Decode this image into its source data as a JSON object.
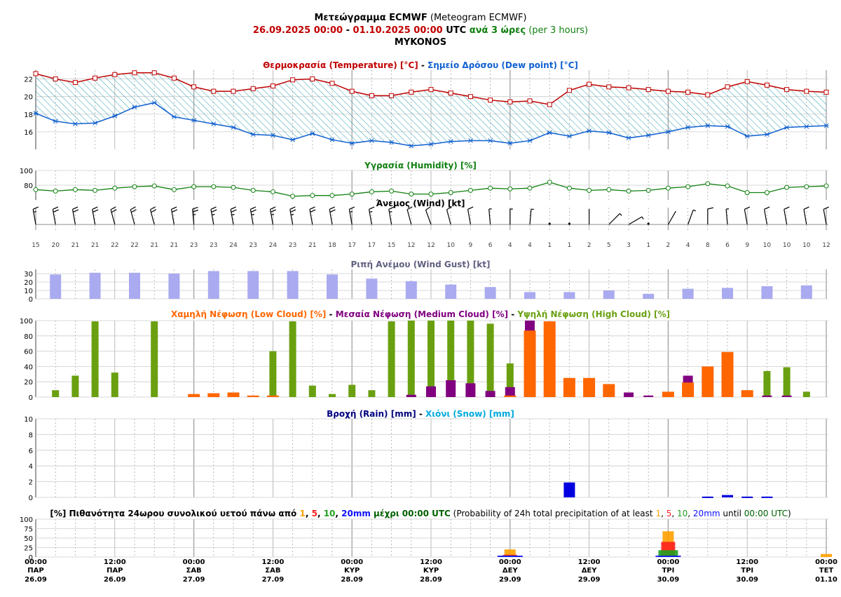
{
  "header": {
    "title_bold": "Μετεώγραμμα ECMWF",
    "title_rest": " (Meteogram ECMWF)",
    "period_start": "26.09.2025 00:00",
    "period_sep": " - ",
    "period_end": "01.10.2025 00:00",
    "utc": " UTC ",
    "step_bold": "ανά 3 ώρες",
    "step_rest": " (per 3 hours)",
    "location": "MYKONOS"
  },
  "colors": {
    "temp": "#c00000",
    "dew": "#1060d0",
    "hum": "#108010",
    "gust": "#aaaaf0",
    "low": "#ff6600",
    "mid": "#800080",
    "high": "#6aa010",
    "rain": "#0000e0",
    "p1": "#ffa000",
    "p5": "#ff2020",
    "p10": "#20a020",
    "p20": "#1010ff"
  },
  "chart_data": [
    {
      "id": "temperature",
      "type": "line",
      "title_parts": [
        {
          "text": "Θερμοκρασία (Temperature) [°C]",
          "color": "#c00000"
        },
        {
          "text": " - ",
          "color": "#000000"
        },
        {
          "text": "Σημείο Δρόσου (Dew point) [°C]",
          "color": "#1060d0"
        }
      ],
      "ylim": [
        14,
        23
      ],
      "yticks": [
        16,
        18,
        20,
        22
      ],
      "series": [
        {
          "name": "Θερμοκρασία (Temperature) [°C]",
          "values": [
            22.6,
            22.0,
            21.6,
            22.1,
            22.5,
            22.7,
            22.7,
            22.1,
            21.1,
            20.6,
            20.6,
            20.9,
            21.2,
            21.9,
            22.0,
            21.5,
            20.6,
            20.1,
            20.1,
            20.5,
            20.8,
            20.4,
            20.0,
            19.6,
            19.4,
            19.5,
            19.1,
            20.7,
            21.4,
            21.1,
            21.0,
            20.8,
            20.6,
            20.5,
            20.2,
            21.1,
            21.7,
            21.3,
            20.8,
            20.6,
            20.5
          ]
        },
        {
          "name": "Σημείο Δρόσου (Dew point) [°C]",
          "values": [
            18.1,
            17.2,
            16.9,
            17.0,
            17.8,
            18.8,
            19.3,
            17.7,
            17.3,
            16.9,
            16.5,
            15.7,
            15.6,
            15.1,
            15.8,
            15.1,
            14.7,
            15.0,
            14.8,
            14.4,
            14.6,
            14.9,
            15.0,
            15.0,
            14.7,
            15.0,
            15.9,
            15.5,
            16.1,
            15.9,
            15.3,
            15.6,
            16.0,
            16.5,
            16.7,
            16.6,
            15.5,
            15.7,
            16.5,
            16.6,
            16.7
          ]
        }
      ]
    },
    {
      "id": "humidity",
      "type": "line",
      "title": "Υγρασία (Humidity) [%]",
      "ylim": [
        60,
        100
      ],
      "yticks": [
        80,
        100
      ],
      "series": [
        {
          "name": "Υγρασία (Humidity) [%]",
          "values": [
            74,
            72,
            74,
            73,
            76,
            78,
            79,
            74,
            78,
            78,
            77,
            73,
            71,
            65,
            66,
            66,
            68,
            71,
            72,
            68,
            68,
            70,
            73,
            76,
            75,
            76,
            84,
            76,
            73,
            74,
            72,
            73,
            76,
            78,
            82,
            79,
            70,
            70,
            77,
            78,
            79
          ]
        }
      ]
    },
    {
      "id": "wind",
      "type": "table",
      "title": "Άνεμος (Wind) [kt]",
      "speeds": [
        15,
        20,
        21,
        21,
        22,
        22,
        21,
        21,
        23,
        23,
        24,
        23,
        24,
        23,
        21,
        18,
        17,
        17,
        15,
        12,
        12,
        10,
        9,
        6,
        4,
        4,
        1,
        1,
        2,
        5,
        3,
        1,
        2,
        4,
        8,
        6,
        9,
        10,
        10,
        10,
        12
      ],
      "directions_deg": [
        350,
        350,
        350,
        350,
        345,
        345,
        345,
        350,
        355,
        350,
        350,
        350,
        350,
        350,
        350,
        350,
        350,
        350,
        350,
        345,
        340,
        345,
        350,
        355,
        0,
        5,
        0,
        0,
        0,
        45,
        60,
        90,
        30,
        20,
        0,
        355,
        350,
        350,
        350,
        350,
        350
      ]
    },
    {
      "id": "gust",
      "type": "bar",
      "title": "Ριπή Ανέμου (Wind Gust) [kt]",
      "ylim": [
        0,
        35
      ],
      "yticks": [
        0,
        10,
        20,
        30
      ],
      "values": [
        null,
        29,
        null,
        31,
        null,
        31,
        null,
        30,
        null,
        33,
        null,
        33,
        null,
        33,
        null,
        29,
        null,
        24,
        null,
        21,
        null,
        17,
        null,
        14,
        null,
        8,
        null,
        8,
        null,
        10,
        null,
        6,
        null,
        12,
        null,
        13,
        null,
        15,
        null,
        16,
        null
      ]
    },
    {
      "id": "clouds",
      "type": "bar",
      "title_parts": [
        {
          "text": "Χαμηλή Νέφωση (Low Cloud) [%]",
          "color": "#ff6600"
        },
        {
          "text": " - ",
          "color": "#000000"
        },
        {
          "text": "Μεσαία Νέφωση (Medium Cloud) [%]",
          "color": "#800080"
        },
        {
          "text": " - ",
          "color": "#000000"
        },
        {
          "text": "Υψηλή Νέφωση (High Cloud) [%]",
          "color": "#6aa010"
        }
      ],
      "ylim": [
        0,
        100
      ],
      "yticks": [
        0,
        20,
        40,
        60,
        80,
        100
      ],
      "series": [
        {
          "name": "Υψηλή Νέφωση (High Cloud) [%]",
          "values": [
            0,
            9,
            28,
            99,
            32,
            0,
            99,
            0,
            0,
            0,
            0,
            0,
            60,
            99,
            15,
            4,
            16,
            9,
            99,
            100,
            100,
            100,
            100,
            96,
            44,
            0,
            0,
            0,
            0,
            0,
            0,
            0,
            0,
            0,
            0,
            0,
            0,
            34,
            39,
            7,
            0
          ]
        },
        {
          "name": "Μεσαία Νέφωση (Medium Cloud) [%]",
          "values": [
            0,
            0,
            0,
            0,
            0,
            0,
            0,
            0,
            0,
            0,
            0,
            0,
            0,
            0,
            0,
            0,
            0,
            0,
            0,
            3,
            14,
            22,
            18,
            8,
            13,
            100,
            0,
            0,
            0,
            0,
            6,
            2,
            0,
            28,
            0,
            0,
            0,
            2,
            2,
            0,
            0
          ]
        },
        {
          "name": "Χαμηλή Νέφωση (Low Cloud) [%]",
          "values": [
            0,
            0,
            0,
            0,
            0,
            0,
            0,
            0,
            4,
            5,
            6,
            2,
            2,
            0,
            0,
            0,
            0,
            0,
            0,
            0,
            0,
            0,
            0,
            0,
            2,
            87,
            99,
            25,
            25,
            17,
            0,
            0,
            7,
            19,
            40,
            59,
            9,
            0,
            0,
            0,
            0
          ]
        }
      ]
    },
    {
      "id": "precip",
      "type": "bar",
      "title_parts": [
        {
          "text": "Βροχή (Rain) [mm]",
          "color": "#000080"
        },
        {
          "text": " - ",
          "color": "#000000"
        },
        {
          "text": "Χιόνι (Snow) [mm]",
          "color": "#00aadd"
        }
      ],
      "ylim": [
        0,
        10
      ],
      "yticks": [
        0,
        2,
        4,
        6,
        8,
        10
      ],
      "series": [
        {
          "name": "Βροχή (Rain) [mm]",
          "values": [
            0,
            0,
            0,
            0,
            0,
            0,
            0,
            0,
            0,
            0,
            0,
            0,
            0,
            0,
            0,
            0,
            0,
            0,
            0,
            0,
            0,
            0,
            0,
            0,
            0,
            0,
            0,
            1.9,
            0,
            0,
            0,
            0,
            0,
            0,
            0.1,
            0.3,
            0.1,
            0.1,
            0,
            0,
            0
          ]
        }
      ]
    },
    {
      "id": "probability",
      "type": "bar",
      "title_parts": [
        {
          "text": "[%] Πιθανότητα 24ωρου συνολικού υετού πάνω από ",
          "color": "#000000",
          "bold": true
        },
        {
          "text": "1",
          "color": "#ffa000",
          "bold": true
        },
        {
          "text": ", ",
          "color": "#000000",
          "bold": true
        },
        {
          "text": "5",
          "color": "#ff2020",
          "bold": true
        },
        {
          "text": ", ",
          "color": "#000000",
          "bold": true
        },
        {
          "text": "10",
          "color": "#20a020",
          "bold": true
        },
        {
          "text": ", ",
          "color": "#000000",
          "bold": true
        },
        {
          "text": "20mm",
          "color": "#1010ff",
          "bold": true
        },
        {
          "text": " μέχρι 00:00 UTC",
          "color": "#006000",
          "bold": true
        },
        {
          "text": " (Probability of 24h total precipitation of at least ",
          "color": "#000000",
          "bold": false
        },
        {
          "text": "1",
          "color": "#ffa000",
          "bold": false
        },
        {
          "text": ", ",
          "color": "#000000",
          "bold": false
        },
        {
          "text": "5",
          "color": "#ff2020",
          "bold": false
        },
        {
          "text": ", ",
          "color": "#000000",
          "bold": false
        },
        {
          "text": "10",
          "color": "#20a020",
          "bold": false
        },
        {
          "text": ", ",
          "color": "#000000",
          "bold": false
        },
        {
          "text": "20mm",
          "color": "#1010ff",
          "bold": false
        },
        {
          "text": " until ",
          "color": "#000000",
          "bold": false
        },
        {
          "text": "00:00 UTC",
          "color": "#006000",
          "bold": false
        },
        {
          "text": ")",
          "color": "#000000",
          "bold": false
        }
      ],
      "ylim": [
        0,
        100
      ],
      "yticks": [
        0,
        25,
        50,
        75,
        100
      ],
      "groups": [
        {
          "at_index": 24,
          "values": [
            {
              "t": "1",
              "v": 20
            },
            {
              "t": "5",
              "v": 6
            },
            {
              "t": "10",
              "v": 3
            },
            {
              "t": "20",
              "v": 1
            }
          ]
        },
        {
          "at_index": 32,
          "values": [
            {
              "t": "1",
              "v": 68
            },
            {
              "t": "5",
              "v": 40
            },
            {
              "t": "10",
              "v": 18
            },
            {
              "t": "20",
              "v": 3
            }
          ]
        },
        {
          "at_index": 40,
          "values": [
            {
              "t": "1",
              "v": 8
            },
            {
              "t": "5",
              "v": 0
            },
            {
              "t": "10",
              "v": 0
            },
            {
              "t": "20",
              "v": 0
            }
          ]
        }
      ]
    }
  ],
  "x_axis": {
    "labels": [
      {
        "index": 0,
        "time": "00:00",
        "day": "ΠΑΡ",
        "date": "26.09"
      },
      {
        "index": 4,
        "time": "12:00",
        "day": "ΠΑΡ",
        "date": "26.09"
      },
      {
        "index": 8,
        "time": "00:00",
        "day": "ΣΑΒ",
        "date": "27.09"
      },
      {
        "index": 12,
        "time": "12:00",
        "day": "ΣΑΒ",
        "date": "27.09"
      },
      {
        "index": 16,
        "time": "00:00",
        "day": "ΚΥΡ",
        "date": "28.09"
      },
      {
        "index": 20,
        "time": "12:00",
        "day": "ΚΥΡ",
        "date": "28.09"
      },
      {
        "index": 24,
        "time": "00:00",
        "day": "ΔΕΥ",
        "date": "29.09"
      },
      {
        "index": 28,
        "time": "12:00",
        "day": "ΔΕΥ",
        "date": "29.09"
      },
      {
        "index": 32,
        "time": "00:00",
        "day": "ΤΡΙ",
        "date": "30.09"
      },
      {
        "index": 36,
        "time": "12:00",
        "day": "ΤΡΙ",
        "date": "30.09"
      },
      {
        "index": 40,
        "time": "00:00",
        "day": "ΤΕΤ",
        "date": "01.10"
      }
    ]
  }
}
